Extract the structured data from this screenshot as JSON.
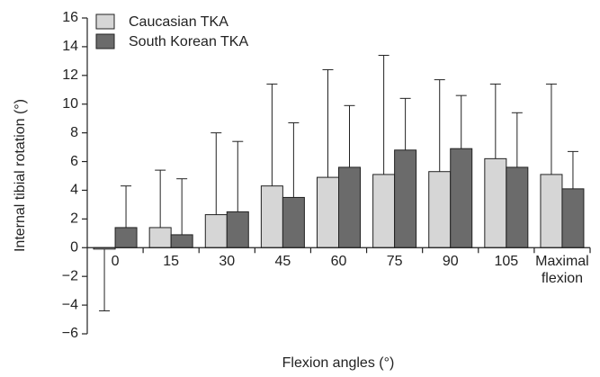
{
  "chart_data": {
    "type": "bar",
    "xlabel": "Flexion angles (°)",
    "ylabel": "Internal tibial rotation (°)",
    "categories": [
      "0",
      "15",
      "30",
      "45",
      "60",
      "75",
      "90",
      "105",
      "Maximal flexion"
    ],
    "series": [
      {
        "name": "Caucasian TKA",
        "color": "#d6d6d6",
        "values": [
          -0.1,
          1.4,
          2.3,
          4.3,
          4.9,
          5.1,
          5.3,
          6.2,
          5.1
        ],
        "errors": [
          4.3,
          4.0,
          5.7,
          7.1,
          7.5,
          8.3,
          6.4,
          5.2,
          6.3
        ]
      },
      {
        "name": "South Korean TKA",
        "color": "#6b6b6b",
        "values": [
          1.4,
          0.9,
          2.5,
          3.5,
          5.6,
          6.8,
          6.9,
          5.6,
          4.1
        ],
        "errors": [
          2.9,
          3.9,
          4.9,
          5.2,
          4.3,
          3.6,
          3.7,
          3.8,
          2.6
        ]
      }
    ],
    "ylim": [
      -6,
      16
    ],
    "yticks": [
      {
        "value": -6,
        "label": "−6"
      },
      {
        "value": -4,
        "label": "−4"
      },
      {
        "value": -2,
        "label": "−2"
      },
      0,
      2,
      4,
      6,
      8,
      10,
      12,
      14,
      16
    ],
    "legend": "upper left"
  }
}
